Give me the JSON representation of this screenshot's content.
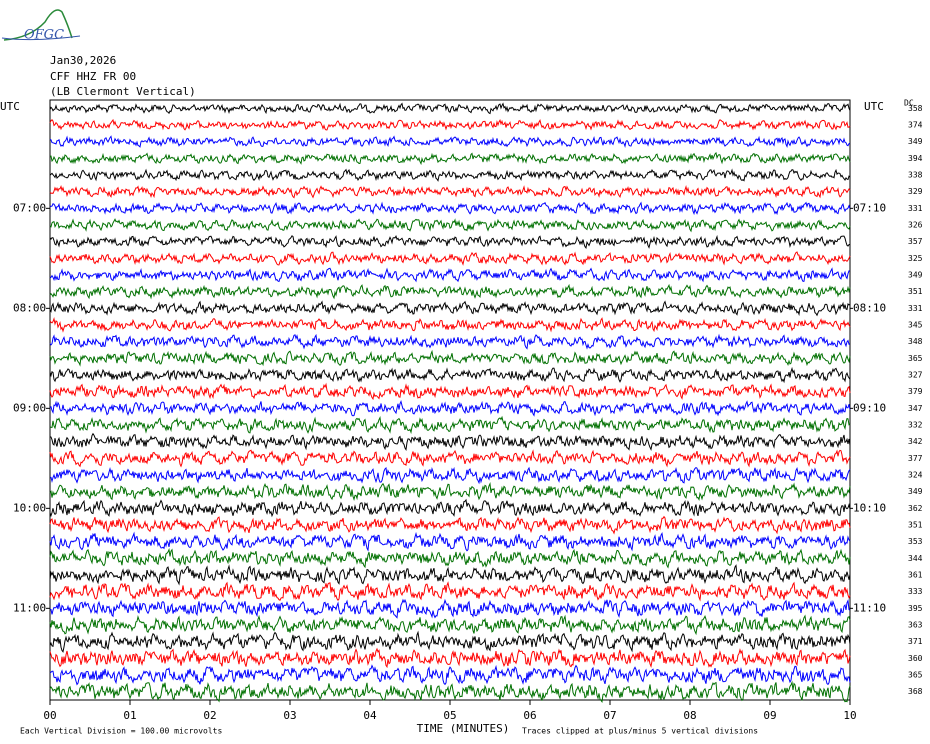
{
  "chart_data": {
    "type": "seismogram",
    "logo": "OFGC",
    "date": "Jan30,2026",
    "station": "CFF HHZ FR 00",
    "location": "(LB  Clermont Vertical)",
    "left_axis_label": "UTC",
    "right_axis_label": "UTC",
    "offset_header": "DC",
    "x_title": "TIME (MINUTES)",
    "scale_note": "Each Vertical Division =  100.00 microvolts",
    "clip_note": "Traces clipped at plus/minus 5 vertical divisions",
    "xlim": [
      0,
      10
    ],
    "xticks": [
      {
        "value": 0,
        "label": "00"
      },
      {
        "value": 1,
        "label": "01"
      },
      {
        "value": 2,
        "label": "02"
      },
      {
        "value": 3,
        "label": "03"
      },
      {
        "value": 4,
        "label": "04"
      },
      {
        "value": 5,
        "label": "05"
      },
      {
        "value": 6,
        "label": "06"
      },
      {
        "value": 7,
        "label": "07"
      },
      {
        "value": 8,
        "label": "08"
      },
      {
        "value": 9,
        "label": "09"
      },
      {
        "value": 10,
        "label": "10"
      }
    ],
    "ylim": [
      360,
      720
    ],
    "yticks": [
      {
        "value": 420,
        "label": "07:00"
      },
      {
        "value": 480,
        "label": "08:00"
      },
      {
        "value": 540,
        "label": "09:00"
      },
      {
        "value": 600,
        "label": "10:00"
      },
      {
        "value": 660,
        "label": "11:00"
      }
    ],
    "y2ticks": [
      {
        "value": 430,
        "label": "07:10"
      },
      {
        "value": 490,
        "label": "08:10"
      },
      {
        "value": 550,
        "label": "09:10"
      },
      {
        "value": 610,
        "label": "10:10"
      },
      {
        "value": 670,
        "label": "11:10"
      }
    ],
    "trace_offsets": [
      358,
      374,
      349,
      394,
      338,
      329,
      331,
      326,
      357,
      325,
      349,
      351,
      331,
      345,
      348,
      365,
      327,
      379,
      347,
      332,
      342,
      377,
      324,
      349,
      362,
      351,
      353,
      344,
      361,
      333,
      395,
      363,
      371,
      360,
      365,
      368
    ],
    "trace_colors": [
      "#000000",
      "#ff0000",
      "#0000ff",
      "#007000"
    ]
  }
}
